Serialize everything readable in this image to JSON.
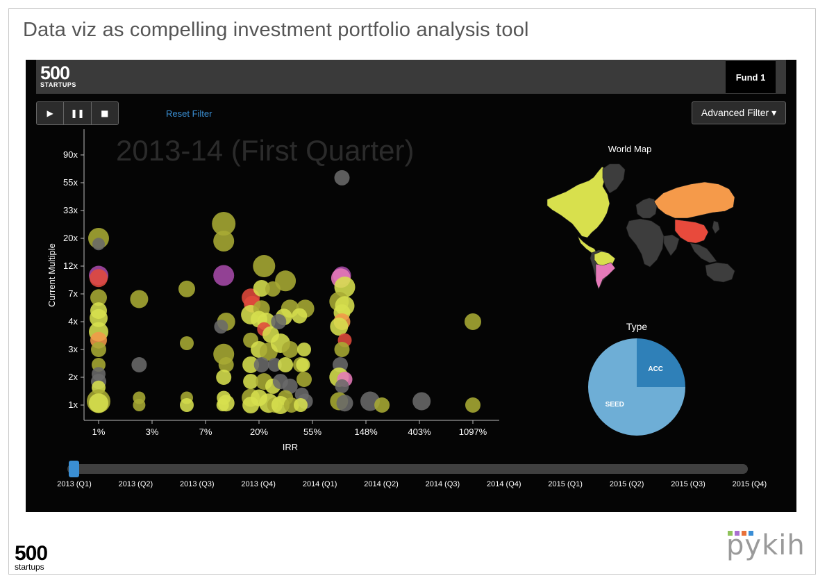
{
  "slide": {
    "title": "Data viz as compelling investment portfolio analysis tool",
    "footer_logo": {
      "num": "500",
      "sub": "startups"
    },
    "footer_brand": {
      "word": "pykih",
      "squares": [
        "#8fc25b",
        "#a96fd0",
        "#e8713a",
        "#3b8ed6"
      ]
    }
  },
  "dashboard": {
    "logo": {
      "num": "500",
      "sub": "STARTUPS"
    },
    "fund_button": "Fund 1",
    "controls": [
      {
        "name": "play-button",
        "glyph": "▶"
      },
      {
        "name": "pause-button",
        "glyph": "❚❚"
      },
      {
        "name": "stop-button",
        "glyph": "■"
      }
    ],
    "reset_filter": "Reset Filter",
    "advanced_filter": "Advanced Filter ▾",
    "period_label": "2013-14 (First Quarter)",
    "world_map_title": "World Map",
    "type_title": "Type",
    "timeline": {
      "labels": [
        "2013 (Q1)",
        "2013 (Q2)",
        "2013 (Q3)",
        "2013 (Q4)",
        "2014 (Q1)",
        "2014 (Q2)",
        "2014 (Q3)",
        "2014 (Q4)",
        "2015 (Q1)",
        "2015 (Q2)",
        "2015 (Q3)",
        "2015 (Q4)"
      ],
      "selected_index": 0
    }
  },
  "chart_data": [
    {
      "type": "scatter",
      "xlabel": "IRR",
      "ylabel": "Current Multiple",
      "x_scale": "categorical-log",
      "x_ticks": [
        "1%",
        "3%",
        "7%",
        "20%",
        "55%",
        "148%",
        "403%",
        "1097%"
      ],
      "y_ticks": [
        "1x",
        "2x",
        "3x",
        "4x",
        "7x",
        "12x",
        "20x",
        "33x",
        "55x",
        "90x"
      ],
      "colors": {
        "yellow": "#d7e04e",
        "olive": "#a9ab34",
        "gray": "#6a6a6a",
        "red": "#e04a3c",
        "orange": "#f29a4a",
        "purple": "#a64aa8",
        "pink": "#e67ab8"
      },
      "points": [
        {
          "x": 1,
          "y": 20,
          "c": "olive",
          "s": 15
        },
        {
          "x": 1,
          "y": 18,
          "c": "gray",
          "s": 9
        },
        {
          "x": 1,
          "y": 10,
          "c": "purple",
          "s": 14
        },
        {
          "x": 1,
          "y": 9.5,
          "c": "red",
          "s": 13
        },
        {
          "x": 1,
          "y": 6.5,
          "c": "olive",
          "s": 12
        },
        {
          "x": 1,
          "y": 5,
          "c": "yellow",
          "s": 12
        },
        {
          "x": 1,
          "y": 4.3,
          "c": "yellow",
          "s": 13
        },
        {
          "x": 1,
          "y": 3.6,
          "c": "yellow",
          "s": 14
        },
        {
          "x": 1,
          "y": 3.3,
          "c": "orange",
          "s": 12
        },
        {
          "x": 1,
          "y": 3,
          "c": "olive",
          "s": 11
        },
        {
          "x": 1,
          "y": 2.4,
          "c": "olive",
          "s": 10
        },
        {
          "x": 1,
          "y": 2.1,
          "c": "gray",
          "s": 10
        },
        {
          "x": 1,
          "y": 1.8,
          "c": "gray",
          "s": 11
        },
        {
          "x": 1,
          "y": 1.55,
          "c": "yellow",
          "s": 10
        },
        {
          "x": 1,
          "y": 1.1,
          "c": "olive",
          "s": 17
        },
        {
          "x": 1,
          "y": 1.05,
          "c": "yellow",
          "s": 14
        },
        {
          "x": 2.3,
          "y": 6.3,
          "c": "olive",
          "s": 13
        },
        {
          "x": 2.3,
          "y": 2.4,
          "c": "gray",
          "s": 11
        },
        {
          "x": 2.3,
          "y": 1.2,
          "c": "olive",
          "s": 9
        },
        {
          "x": 2.3,
          "y": 1.0,
          "c": "olive",
          "s": 9
        },
        {
          "x": 5.2,
          "y": 7.7,
          "c": "olive",
          "s": 12
        },
        {
          "x": 5.2,
          "y": 3.2,
          "c": "olive",
          "s": 10
        },
        {
          "x": 5.2,
          "y": 1.2,
          "c": "olive",
          "s": 9
        },
        {
          "x": 5.2,
          "y": 1.0,
          "c": "yellow",
          "s": 10
        },
        {
          "x": 10,
          "y": 26,
          "c": "olive",
          "s": 17
        },
        {
          "x": 10,
          "y": 19,
          "c": "olive",
          "s": 15
        },
        {
          "x": 10,
          "y": 10,
          "c": "purple",
          "s": 15
        },
        {
          "x": 10.5,
          "y": 4,
          "c": "olive",
          "s": 13
        },
        {
          "x": 9.5,
          "y": 3.8,
          "c": "gray",
          "s": 10
        },
        {
          "x": 10,
          "y": 2.8,
          "c": "olive",
          "s": 15
        },
        {
          "x": 10.5,
          "y": 2.4,
          "c": "olive",
          "s": 11
        },
        {
          "x": 10,
          "y": 2.0,
          "c": "yellow",
          "s": 11
        },
        {
          "x": 10,
          "y": 1.2,
          "c": "yellow",
          "s": 10
        },
        {
          "x": 10.5,
          "y": 1.05,
          "c": "yellow",
          "s": 12
        },
        {
          "x": 9.8,
          "y": 1.0,
          "c": "yellow",
          "s": 9
        },
        {
          "x": 17,
          "y": 6.5,
          "c": "red",
          "s": 13
        },
        {
          "x": 17.5,
          "y": 5.7,
          "c": "red",
          "s": 12
        },
        {
          "x": 17,
          "y": 4.6,
          "c": "yellow",
          "s": 14
        },
        {
          "x": 17,
          "y": 3.3,
          "c": "olive",
          "s": 11
        },
        {
          "x": 17,
          "y": 2.4,
          "c": "yellow",
          "s": 12
        },
        {
          "x": 17,
          "y": 1.8,
          "c": "yellow",
          "s": 11
        },
        {
          "x": 17,
          "y": 1.2,
          "c": "olive",
          "s": 13
        },
        {
          "x": 17,
          "y": 1.0,
          "c": "yellow",
          "s": 12
        },
        {
          "x": 22,
          "y": 12,
          "c": "olive",
          "s": 16
        },
        {
          "x": 21,
          "y": 7.8,
          "c": "yellow",
          "s": 12
        },
        {
          "x": 26,
          "y": 7.7,
          "c": "olive",
          "s": 11
        },
        {
          "x": 21,
          "y": 5.2,
          "c": "olive",
          "s": 12
        },
        {
          "x": 20,
          "y": 4.2,
          "c": "yellow",
          "s": 12
        },
        {
          "x": 23,
          "y": 4.0,
          "c": "yellow",
          "s": 13
        },
        {
          "x": 22,
          "y": 3.7,
          "c": "red",
          "s": 10
        },
        {
          "x": 25,
          "y": 3.5,
          "c": "yellow",
          "s": 12
        },
        {
          "x": 20,
          "y": 3.0,
          "c": "yellow",
          "s": 12
        },
        {
          "x": 24,
          "y": 2.9,
          "c": "olive",
          "s": 13
        },
        {
          "x": 21,
          "y": 2.4,
          "c": "gray",
          "s": 11
        },
        {
          "x": 27,
          "y": 2.4,
          "c": "gray",
          "s": 10
        },
        {
          "x": 22,
          "y": 1.8,
          "c": "olive",
          "s": 12
        },
        {
          "x": 26,
          "y": 1.6,
          "c": "yellow",
          "s": 11
        },
        {
          "x": 20,
          "y": 1.2,
          "c": "yellow",
          "s": 12
        },
        {
          "x": 24,
          "y": 1.05,
          "c": "yellow",
          "s": 14
        },
        {
          "x": 27,
          "y": 1.0,
          "c": "olive",
          "s": 11
        },
        {
          "x": 33,
          "y": 9.0,
          "c": "olive",
          "s": 15
        },
        {
          "x": 36,
          "y": 5.2,
          "c": "olive",
          "s": 13
        },
        {
          "x": 32,
          "y": 4.4,
          "c": "yellow",
          "s": 12
        },
        {
          "x": 29,
          "y": 4.0,
          "c": "gray",
          "s": 11
        },
        {
          "x": 30,
          "y": 3.2,
          "c": "yellow",
          "s": 14
        },
        {
          "x": 36,
          "y": 3.0,
          "c": "olive",
          "s": 12
        },
        {
          "x": 33,
          "y": 2.4,
          "c": "yellow",
          "s": 11
        },
        {
          "x": 30,
          "y": 1.8,
          "c": "gray",
          "s": 11
        },
        {
          "x": 36,
          "y": 1.6,
          "c": "gray",
          "s": 11
        },
        {
          "x": 33,
          "y": 1.2,
          "c": "olive",
          "s": 11
        },
        {
          "x": 30,
          "y": 1.0,
          "c": "yellow",
          "s": 13
        },
        {
          "x": 37,
          "y": 1.0,
          "c": "olive",
          "s": 11
        },
        {
          "x": 48,
          "y": 5.2,
          "c": "olive",
          "s": 13
        },
        {
          "x": 43,
          "y": 4.5,
          "c": "yellow",
          "s": 11
        },
        {
          "x": 47,
          "y": 3.0,
          "c": "yellow",
          "s": 10
        },
        {
          "x": 44,
          "y": 2.4,
          "c": "olive",
          "s": 11
        },
        {
          "x": 46,
          "y": 2.4,
          "c": "yellow",
          "s": 10
        },
        {
          "x": 47,
          "y": 1.9,
          "c": "olive",
          "s": 11
        },
        {
          "x": 45,
          "y": 1.3,
          "c": "gray",
          "s": 10
        },
        {
          "x": 48,
          "y": 1.1,
          "c": "gray",
          "s": 11
        },
        {
          "x": 44,
          "y": 1.0,
          "c": "yellow",
          "s": 10
        },
        {
          "x": 95,
          "y": 60,
          "c": "gray",
          "s": 11
        },
        {
          "x": 95,
          "y": 10,
          "c": "purple",
          "s": 13
        },
        {
          "x": 93,
          "y": 9.5,
          "c": "pink",
          "s": 14
        },
        {
          "x": 100,
          "y": 8,
          "c": "yellow",
          "s": 15
        },
        {
          "x": 90,
          "y": 6,
          "c": "olive",
          "s": 14
        },
        {
          "x": 100,
          "y": 5.5,
          "c": "yellow",
          "s": 14
        },
        {
          "x": 95,
          "y": 4.8,
          "c": "yellow",
          "s": 12
        },
        {
          "x": 95,
          "y": 4.0,
          "c": "orange",
          "s": 12
        },
        {
          "x": 90,
          "y": 3.8,
          "c": "yellow",
          "s": 13
        },
        {
          "x": 100,
          "y": 3.3,
          "c": "red",
          "s": 10
        },
        {
          "x": 95,
          "y": 3.0,
          "c": "olive",
          "s": 11
        },
        {
          "x": 92,
          "y": 2.4,
          "c": "gray",
          "s": 11
        },
        {
          "x": 90,
          "y": 2.0,
          "c": "yellow",
          "s": 14
        },
        {
          "x": 100,
          "y": 1.9,
          "c": "pink",
          "s": 11
        },
        {
          "x": 95,
          "y": 1.6,
          "c": "gray",
          "s": 10
        },
        {
          "x": 90,
          "y": 1.1,
          "c": "olive",
          "s": 13
        },
        {
          "x": 100,
          "y": 1.05,
          "c": "gray",
          "s": 12
        },
        {
          "x": 160,
          "y": 1.1,
          "c": "gray",
          "s": 14
        },
        {
          "x": 200,
          "y": 1.0,
          "c": "olive",
          "s": 11
        },
        {
          "x": 420,
          "y": 1.1,
          "c": "gray",
          "s": 13
        },
        {
          "x": 1097,
          "y": 4.0,
          "c": "olive",
          "s": 12
        },
        {
          "x": 1097,
          "y": 1.0,
          "c": "olive",
          "s": 11
        }
      ]
    },
    {
      "type": "pie",
      "title": "Type",
      "slices": [
        {
          "label": "ACC",
          "value": 25,
          "color": "#2f80b8"
        },
        {
          "label": "SEED",
          "value": 75,
          "color": "#6eaed6"
        }
      ]
    }
  ],
  "world_map": {
    "title": "World Map",
    "regions": [
      {
        "name": "north-america",
        "color": "#d8e04d"
      },
      {
        "name": "greenland",
        "color": "#3d3d3d"
      },
      {
        "name": "central-america",
        "color": "#d8e04d"
      },
      {
        "name": "south-america",
        "color": "#3d3d3d"
      },
      {
        "name": "brazil",
        "color": "#d8e04d"
      },
      {
        "name": "argentina",
        "color": "#e57ab9"
      },
      {
        "name": "europe",
        "color": "#3d3d3d"
      },
      {
        "name": "africa",
        "color": "#3d3d3d"
      },
      {
        "name": "russia",
        "color": "#f59a4a"
      },
      {
        "name": "china",
        "color": "#e84a3c"
      },
      {
        "name": "india",
        "color": "#3d3d3d"
      },
      {
        "name": "southeast-asia",
        "color": "#3d3d3d"
      },
      {
        "name": "australia",
        "color": "#3d3d3d"
      },
      {
        "name": "japan",
        "color": "#3d3d3d"
      }
    ]
  }
}
